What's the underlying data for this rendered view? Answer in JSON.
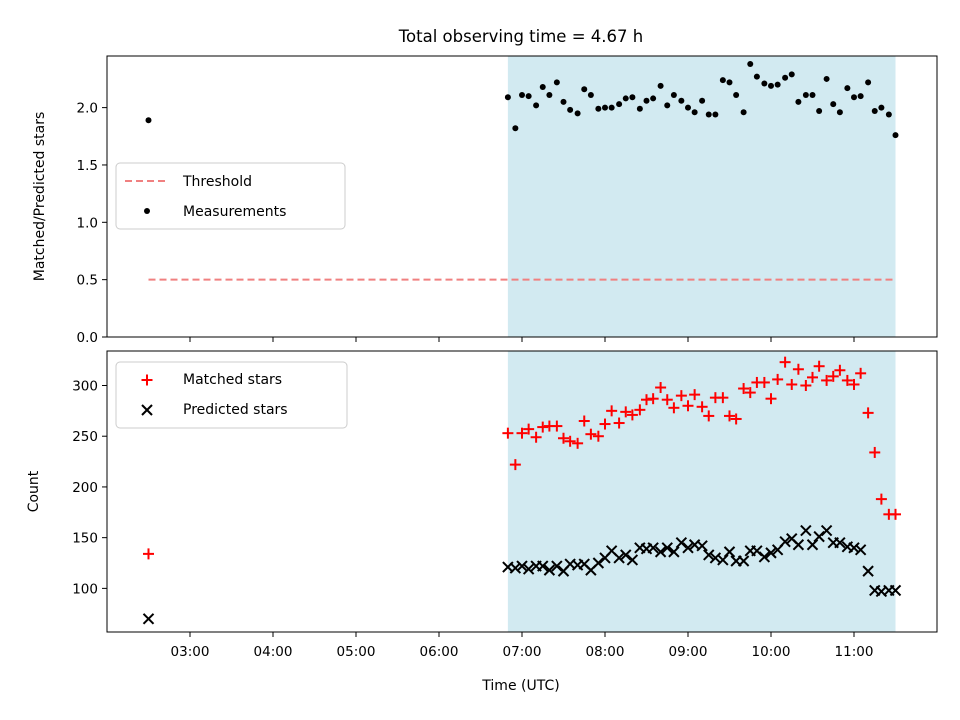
{
  "figure": {
    "title": "Total observing time = 4.67 h",
    "xlabel": "Time (UTC)"
  },
  "colors": {
    "threshold": "#f08080",
    "measurements": "#000000",
    "matched": "#ff0000",
    "predicted": "#000000",
    "span": "#add8e6"
  },
  "chart_data": [
    {
      "type": "scatter",
      "panel": "top",
      "ylabel": "Matched/Predicted stars",
      "xlim_hours": [
        2.0,
        12.0
      ],
      "ylim": [
        0.0,
        2.45
      ],
      "x_ticks": [
        "03:00",
        "04:00",
        "05:00",
        "06:00",
        "07:00",
        "08:00",
        "09:00",
        "10:00",
        "11:00"
      ],
      "y_ticks": [
        "0.0",
        "0.5",
        "1.0",
        "1.5",
        "2.0"
      ],
      "legend_position": "center-left",
      "legend": [
        {
          "label": "Threshold",
          "marker": "dashed-line"
        },
        {
          "label": "Measurements",
          "marker": "dot"
        }
      ],
      "shaded_span_hours": [
        6.83,
        11.5
      ],
      "threshold": {
        "value": 0.5,
        "x_start_hours": 2.5,
        "x_end_hours": 11.5
      },
      "series": [
        {
          "name": "Measurements",
          "x_hours": [
            2.5,
            6.83,
            6.92,
            7.0,
            7.08,
            7.17,
            7.25,
            7.33,
            7.42,
            7.5,
            7.58,
            7.67,
            7.75,
            7.83,
            7.92,
            8.0,
            8.08,
            8.17,
            8.25,
            8.33,
            8.42,
            8.5,
            8.58,
            8.67,
            8.75,
            8.83,
            8.92,
            9.0,
            9.08,
            9.17,
            9.25,
            9.33,
            9.42,
            9.5,
            9.58,
            9.67,
            9.75,
            9.83,
            9.92,
            10.0,
            10.08,
            10.17,
            10.25,
            10.33,
            10.42,
            10.5,
            10.58,
            10.67,
            10.75,
            10.83,
            10.92,
            11.0,
            11.08,
            11.17,
            11.25,
            11.33,
            11.42,
            11.5
          ],
          "values": [
            1.89,
            2.09,
            1.82,
            2.11,
            2.1,
            2.02,
            2.18,
            2.11,
            2.22,
            2.05,
            1.98,
            1.95,
            2.16,
            2.11,
            1.99,
            2.0,
            2.0,
            2.03,
            2.08,
            2.09,
            1.99,
            2.06,
            2.08,
            2.19,
            2.02,
            2.11,
            2.06,
            2.0,
            1.96,
            2.06,
            1.94,
            1.94,
            2.24,
            2.22,
            2.11,
            1.96,
            2.38,
            2.27,
            2.21,
            2.19,
            2.2,
            2.26,
            2.29,
            2.05,
            2.11,
            2.11,
            1.97,
            2.25,
            2.03,
            1.96,
            2.17,
            2.09,
            2.1,
            2.22,
            1.97,
            2.0,
            1.94,
            1.76
          ]
        }
      ]
    },
    {
      "type": "scatter",
      "panel": "bottom",
      "ylabel": "Count",
      "xlim_hours": [
        2.0,
        12.0
      ],
      "ylim": [
        57,
        334
      ],
      "x_ticks": [
        "03:00",
        "04:00",
        "05:00",
        "06:00",
        "07:00",
        "08:00",
        "09:00",
        "10:00",
        "11:00"
      ],
      "y_ticks": [
        "100",
        "150",
        "200",
        "250",
        "300"
      ],
      "legend_position": "top-left",
      "legend": [
        {
          "label": "Matched stars",
          "marker": "plus"
        },
        {
          "label": "Predicted stars",
          "marker": "x"
        }
      ],
      "shaded_span_hours": [
        6.83,
        11.5
      ],
      "series": [
        {
          "name": "Matched stars",
          "x_hours": [
            2.5,
            6.83,
            6.92,
            7.0,
            7.08,
            7.17,
            7.25,
            7.33,
            7.42,
            7.5,
            7.58,
            7.67,
            7.75,
            7.83,
            7.92,
            8.0,
            8.08,
            8.17,
            8.25,
            8.33,
            8.42,
            8.5,
            8.58,
            8.67,
            8.75,
            8.83,
            8.92,
            9.0,
            9.08,
            9.17,
            9.25,
            9.33,
            9.42,
            9.5,
            9.58,
            9.67,
            9.75,
            9.83,
            9.92,
            10.0,
            10.08,
            10.17,
            10.25,
            10.33,
            10.42,
            10.5,
            10.58,
            10.67,
            10.75,
            10.83,
            10.92,
            11.0,
            11.08,
            11.17,
            11.25,
            11.33,
            11.42,
            11.5
          ],
          "values": [
            134,
            253,
            222,
            253,
            257,
            249,
            259,
            260,
            260,
            248,
            245,
            243,
            265,
            252,
            250,
            262,
            275,
            263,
            274,
            271,
            276,
            286,
            287,
            298,
            286,
            278,
            290,
            280,
            291,
            279,
            270,
            288,
            288,
            270,
            267,
            297,
            293,
            303,
            303,
            287,
            306,
            323,
            301,
            316,
            300,
            308,
            319,
            305,
            309,
            315,
            305,
            301,
            312,
            273,
            234,
            188,
            173,
            173
          ]
        },
        {
          "name": "Predicted stars",
          "x_hours": [
            2.5,
            6.83,
            6.92,
            7.0,
            7.08,
            7.17,
            7.25,
            7.33,
            7.42,
            7.5,
            7.58,
            7.67,
            7.75,
            7.83,
            7.92,
            8.0,
            8.08,
            8.17,
            8.25,
            8.33,
            8.42,
            8.5,
            8.58,
            8.67,
            8.75,
            8.83,
            8.92,
            9.0,
            9.08,
            9.17,
            9.25,
            9.33,
            9.42,
            9.5,
            9.58,
            9.67,
            9.75,
            9.83,
            9.92,
            10.0,
            10.08,
            10.17,
            10.25,
            10.33,
            10.42,
            10.5,
            10.58,
            10.67,
            10.75,
            10.83,
            10.92,
            11.0,
            11.08,
            11.17,
            11.25,
            11.33,
            11.42,
            11.5
          ],
          "values": [
            70,
            121,
            120,
            122,
            119,
            122,
            122,
            118,
            122,
            117,
            124,
            123,
            124,
            118,
            125,
            130,
            137,
            130,
            133,
            128,
            140,
            139,
            140,
            136,
            140,
            136,
            145,
            140,
            143,
            142,
            133,
            130,
            128,
            136,
            127,
            127,
            137,
            137,
            131,
            135,
            138,
            146,
            149,
            143,
            157,
            143,
            151,
            157,
            145,
            145,
            141,
            140,
            138,
            117,
            98,
            97,
            98,
            98
          ]
        }
      ]
    }
  ]
}
